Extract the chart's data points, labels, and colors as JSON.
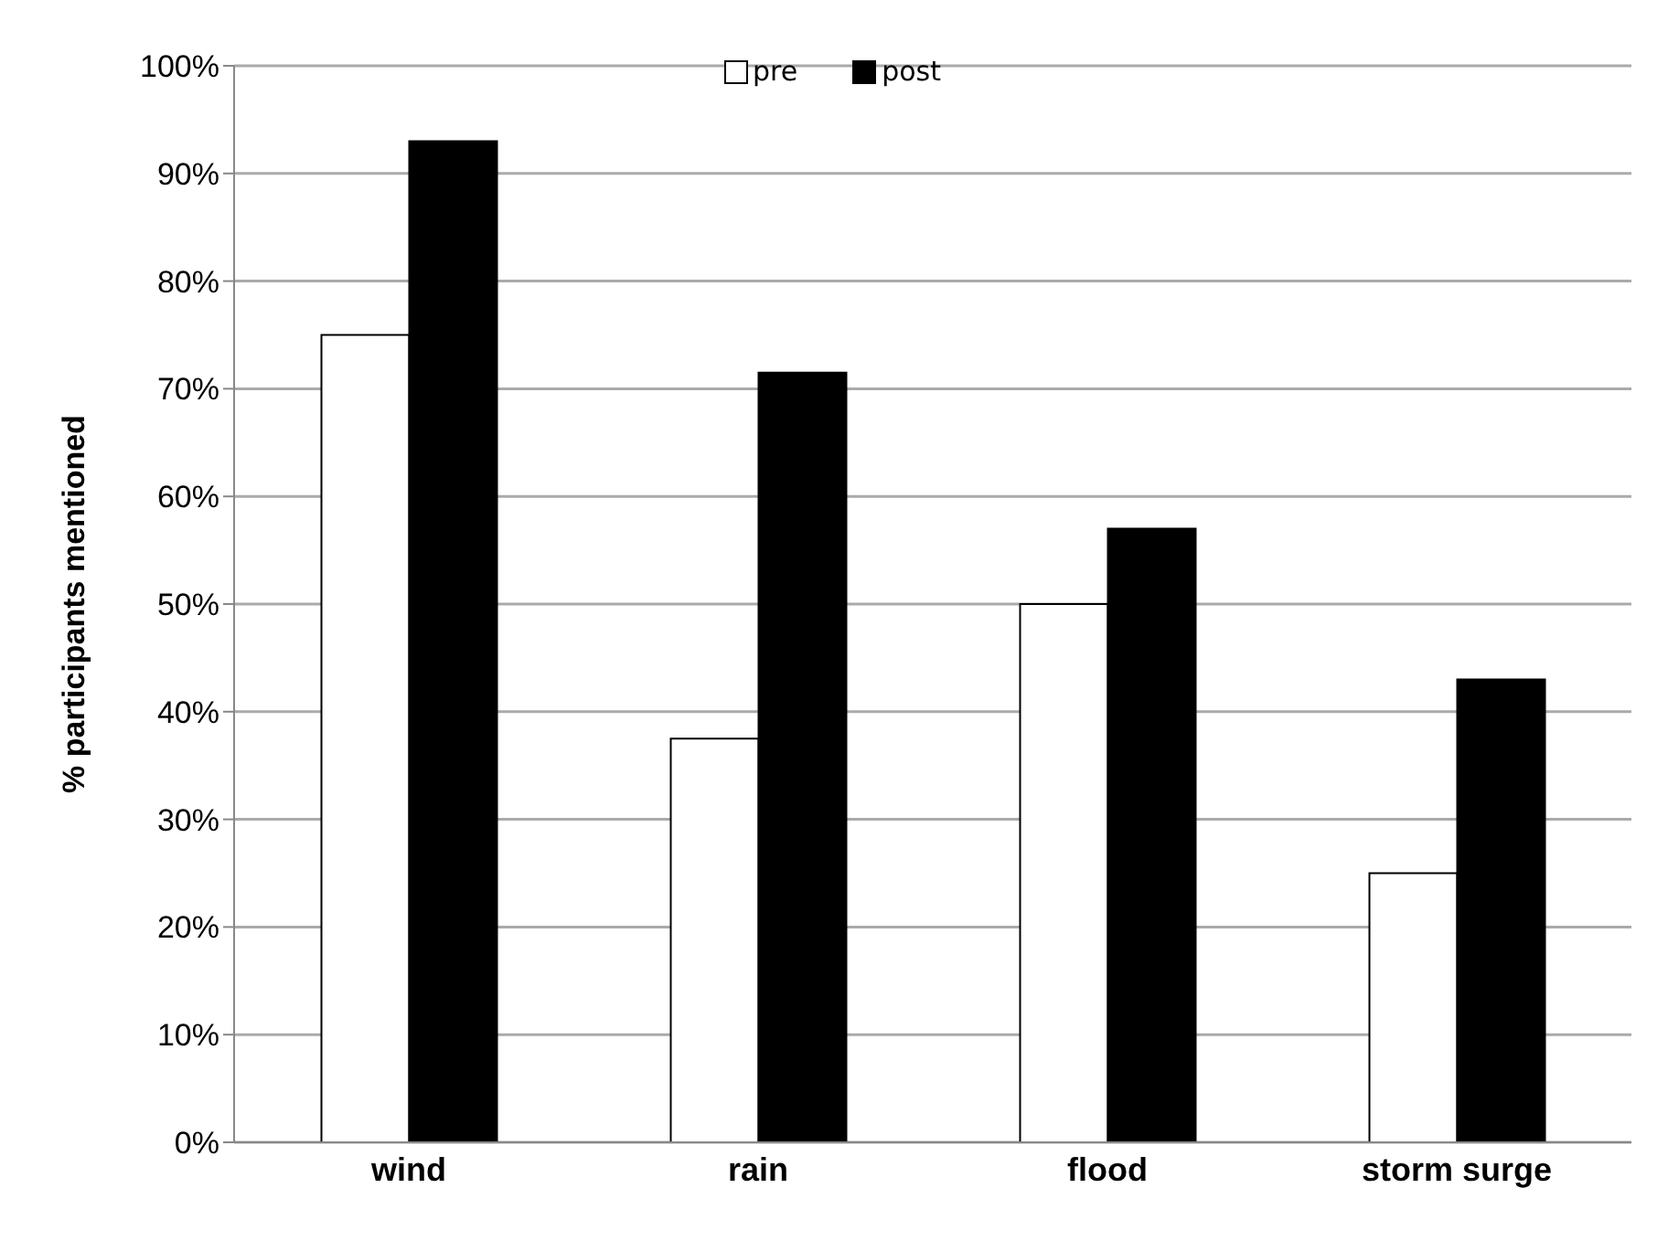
{
  "chart_data": {
    "type": "bar",
    "ylabel": "% participants mentioned",
    "categories": [
      "wind",
      "rain",
      "flood",
      "storm surge"
    ],
    "series": [
      {
        "name": "pre",
        "color": "#ffffff",
        "values": [
          75,
          37.5,
          50,
          25
        ]
      },
      {
        "name": "post",
        "color": "#000000",
        "values": [
          93,
          71.5,
          57,
          43
        ]
      }
    ],
    "ylim": [
      0,
      100
    ],
    "yticks": [
      {
        "value": 0,
        "label": "0%"
      },
      {
        "value": 10,
        "label": "10%"
      },
      {
        "value": 20,
        "label": "20%"
      },
      {
        "value": 30,
        "label": "30%"
      },
      {
        "value": 40,
        "label": "40%"
      },
      {
        "value": 50,
        "label": "50%"
      },
      {
        "value": 60,
        "label": "60%"
      },
      {
        "value": 70,
        "label": "70%"
      },
      {
        "value": 80,
        "label": "80%"
      },
      {
        "value": 90,
        "label": "90%"
      },
      {
        "value": 100,
        "label": "100%"
      }
    ],
    "grid": "y",
    "legend": "top"
  }
}
